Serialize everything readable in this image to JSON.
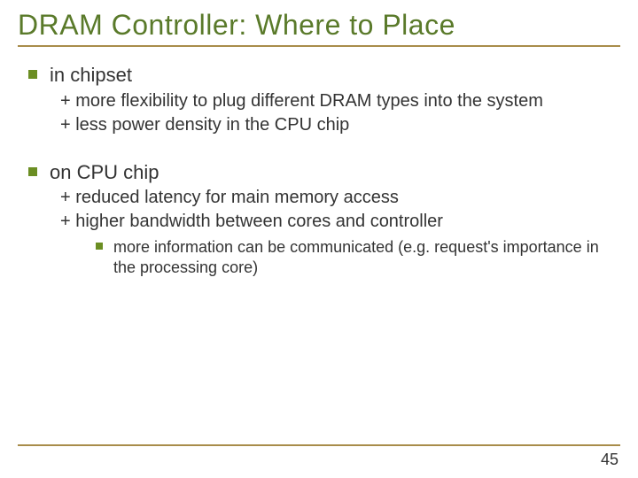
{
  "colors": {
    "title": "#5a7a2a",
    "rule": "#a88c4a",
    "bullet": "#6b8e23",
    "text": "#333333",
    "background": "#ffffff"
  },
  "typography": {
    "title_fontsize": 32,
    "l1_fontsize": 22,
    "l2_fontsize": 20,
    "l3_fontsize": 18,
    "font_family": "Verdana, Arial, sans-serif"
  },
  "title": "DRAM Controller: Where to Place",
  "sections": [
    {
      "heading": "in chipset",
      "points": [
        "+ more flexibility to plug different DRAM types into the system",
        "+ less power density in the CPU chip"
      ],
      "nested": []
    },
    {
      "heading": "on CPU chip",
      "points": [
        "+ reduced latency for main memory access",
        "+ higher bandwidth between cores and controller"
      ],
      "nested": [
        "more information can be communicated (e.g. request's importance in the processing core)"
      ]
    }
  ],
  "page_number": "45"
}
